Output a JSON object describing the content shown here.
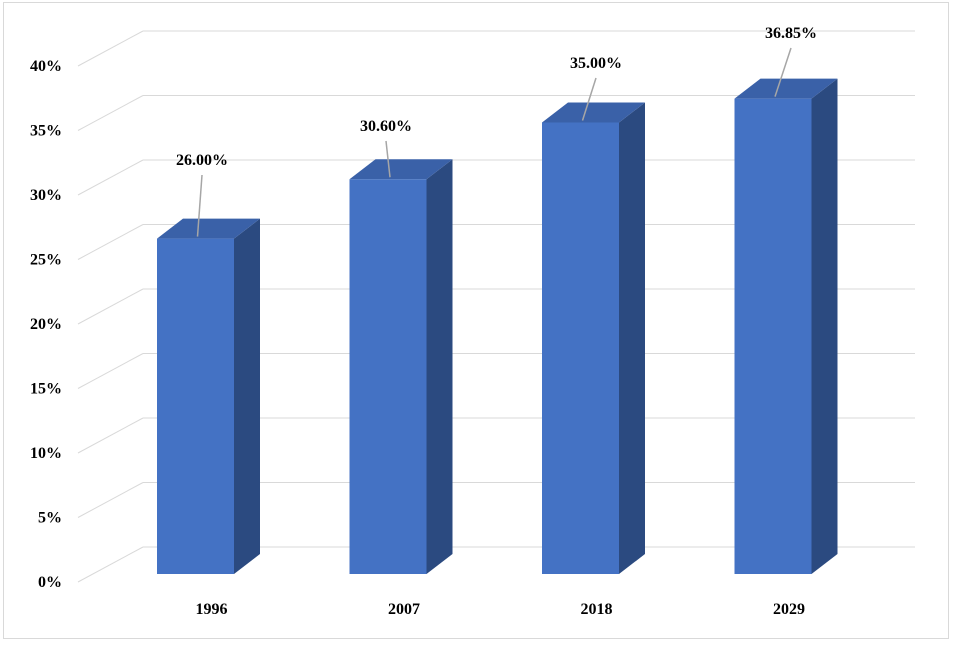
{
  "chart_data": {
    "type": "bar",
    "title": "",
    "xlabel": "",
    "ylabel": "",
    "categories": [
      "1996",
      "2007",
      "2018",
      "2029"
    ],
    "values": [
      26.0,
      30.6,
      35.0,
      36.85
    ],
    "data_labels": [
      "26.00%",
      "30.60%",
      "35.00%",
      "36.85%"
    ],
    "yticks": [
      "0%",
      "5%",
      "10%",
      "15%",
      "20%",
      "25%",
      "30%",
      "35%",
      "40%"
    ],
    "ylim": [
      0,
      40
    ],
    "grid": true,
    "legend": "none",
    "three_d": true,
    "colors": {
      "bar_front": "#4472C4",
      "bar_side": "#2B4A80",
      "bar_top": "#3A61A8",
      "grid": "#d9d9d9",
      "leader": "#a6a6a6"
    }
  }
}
